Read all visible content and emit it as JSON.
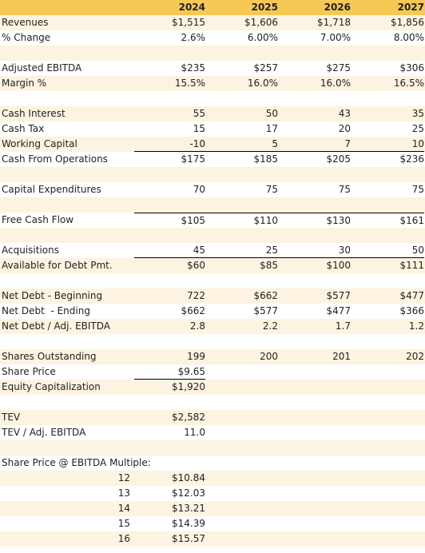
{
  "header": [
    "",
    "2024",
    "2025",
    "2026",
    "2027"
  ],
  "rows": [
    {
      "cells": [
        "Revenues",
        "$1,515",
        "$1,606",
        "$1,718",
        "$1,856"
      ]
    },
    {
      "cells": [
        "% Change",
        "2.6%",
        "6.00%",
        "7.00%",
        "8.00%"
      ]
    },
    {
      "cells": [
        "",
        "",
        "",
        "",
        ""
      ]
    },
    {
      "cells": [
        "Adjusted EBITDA",
        "$235",
        "$257",
        "$275",
        "$306"
      ]
    },
    {
      "cells": [
        "Margin %",
        "15.5%",
        "16.0%",
        "16.0%",
        "16.5%"
      ]
    },
    {
      "cells": [
        "",
        "",
        "",
        "",
        ""
      ]
    },
    {
      "cells": [
        "Cash Interest",
        "55",
        "50",
        "43",
        "35"
      ]
    },
    {
      "cells": [
        "Cash Tax",
        "15",
        "17",
        "20",
        "25"
      ]
    },
    {
      "cells": [
        "Working Capital",
        "-10",
        "5",
        "7",
        "10"
      ]
    },
    {
      "cells": [
        "Cash From Operations",
        "$175",
        "$185",
        "$205",
        "$236"
      ]
    },
    {
      "cells": [
        "",
        "",
        "",
        "",
        ""
      ]
    },
    {
      "cells": [
        "Capital Expenditures",
        "70",
        "75",
        "75",
        "75"
      ]
    },
    {
      "cells": [
        "",
        "",
        "",
        "",
        ""
      ]
    },
    {
      "cells": [
        "Free Cash Flow",
        "$105",
        "$110",
        "$130",
        "$161"
      ]
    },
    {
      "cells": [
        "",
        "",
        "",
        "",
        ""
      ]
    },
    {
      "cells": [
        "Acquisitions",
        "45",
        "25",
        "30",
        "50"
      ]
    },
    {
      "cells": [
        "Available for Debt Pmt.",
        "$60",
        "$85",
        "$100",
        "$111"
      ]
    },
    {
      "cells": [
        "",
        "",
        "",
        "",
        ""
      ]
    },
    {
      "cells": [
        "Net Debt - Beginning",
        "722",
        "$662",
        "$577",
        "$477"
      ]
    },
    {
      "cells": [
        "Net Debt  - Ending",
        "$662",
        "$577",
        "$477",
        "$366"
      ]
    },
    {
      "cells": [
        "Net Debt / Adj. EBITDA",
        "2.8",
        "2.2",
        "1.7",
        "1.2"
      ]
    },
    {
      "cells": [
        "",
        "",
        "",
        "",
        ""
      ]
    },
    {
      "cells": [
        "Shares Outstanding",
        "199",
        "200",
        "201",
        "202"
      ]
    },
    {
      "cells": [
        "Share Price",
        "$9.65",
        "",
        "",
        ""
      ]
    },
    {
      "cells": [
        "Equity Capitalization",
        "$1,920",
        "",
        "",
        ""
      ]
    },
    {
      "cells": [
        "",
        "",
        "",
        "",
        ""
      ]
    },
    {
      "cells": [
        "TEV",
        "$2,582",
        "",
        "",
        ""
      ]
    },
    {
      "cells": [
        "TEV / Adj. EBITDA",
        "11.0",
        "",
        "",
        ""
      ]
    },
    {
      "cells": [
        "",
        "",
        "",
        "",
        ""
      ]
    },
    {
      "cells": [
        "Share Price @ EBITDA Multiple:",
        "",
        "",
        "",
        ""
      ]
    },
    {
      "cells": [
        "12",
        "$10.84",
        "",
        "",
        ""
      ]
    },
    {
      "cells": [
        "13",
        "$12.03",
        "",
        "",
        ""
      ]
    },
    {
      "cells": [
        "14",
        "$13.21",
        "",
        "",
        ""
      ]
    },
    {
      "cells": [
        "15",
        "$14.39",
        "",
        "",
        ""
      ]
    },
    {
      "cells": [
        "16",
        "$15.57",
        "",
        "",
        ""
      ]
    }
  ]
}
